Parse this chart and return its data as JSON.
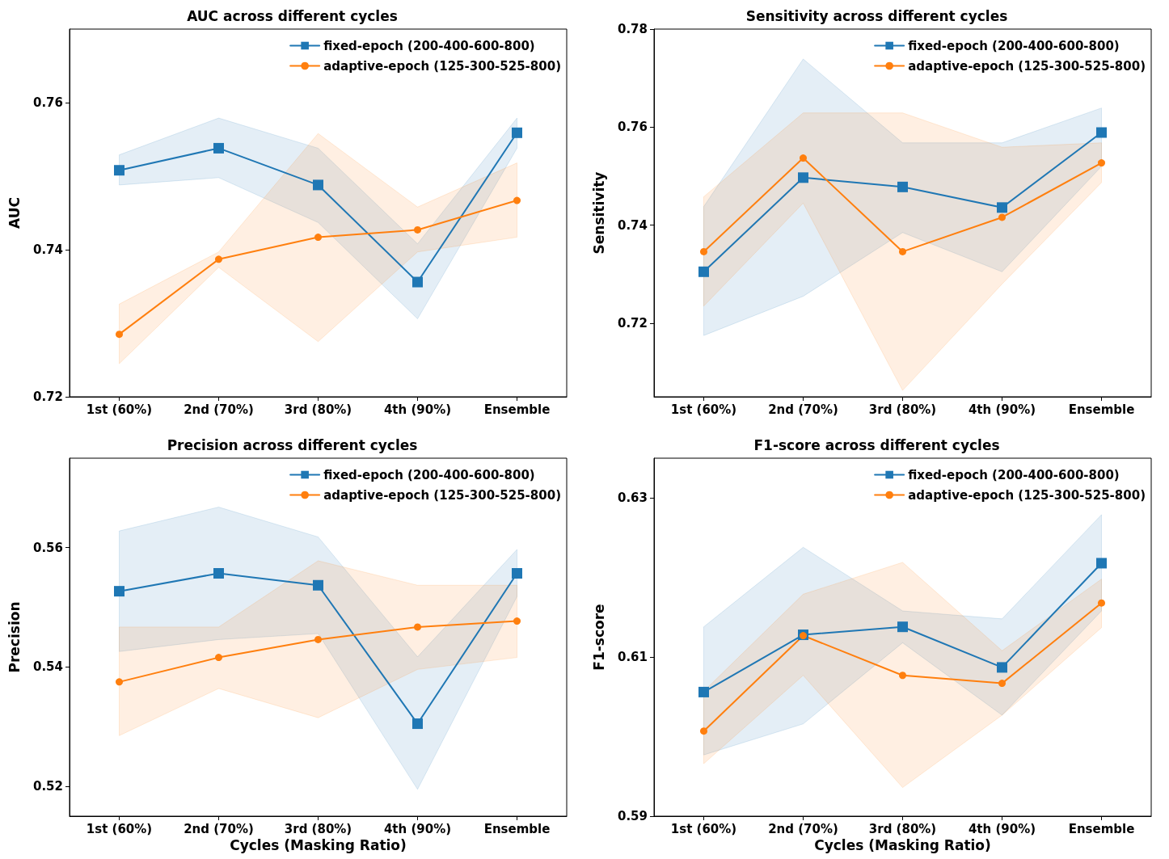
{
  "chart_data": [
    {
      "type": "line",
      "title": "AUC across different cycles",
      "ylabel": "AUC",
      "categories": [
        "1st (60%)",
        "2nd (70%)",
        "3rd (80%)",
        "4th (90%)",
        "Ensemble"
      ],
      "ylim": [
        0.72,
        0.77
      ],
      "yticks": [
        0.72,
        0.74,
        0.76
      ],
      "grid": false,
      "legend": "top right",
      "series": [
        {
          "name": "fixed-epoch (200-400-600-800)",
          "color": "#1f77b4",
          "marker": "square",
          "values": [
            0.7508,
            0.7538,
            0.7488,
            0.7356,
            0.7559
          ],
          "lower": [
            0.7488,
            0.7498,
            0.7437,
            0.7306,
            0.7538
          ],
          "upper": [
            0.7529,
            0.7579,
            0.7538,
            0.7408,
            0.7579
          ]
        },
        {
          "name": "adaptive-epoch (125-300-525-800)",
          "color": "#ff7f0e",
          "marker": "circle",
          "values": [
            0.7285,
            0.7387,
            0.7417,
            0.7427,
            0.7467
          ],
          "lower": [
            0.7245,
            0.7376,
            0.7275,
            0.7397,
            0.7417
          ],
          "upper": [
            0.7326,
            0.7397,
            0.7558,
            0.7458,
            0.7518
          ]
        }
      ]
    },
    {
      "type": "line",
      "title": "Sensitivity across different cycles",
      "ylabel": "Sensitivity",
      "categories": [
        "1st (60%)",
        "2nd (70%)",
        "3rd (80%)",
        "4th (90%)",
        "Ensemble"
      ],
      "ylim": [
        0.705,
        0.78
      ],
      "yticks": [
        0.72,
        0.74,
        0.76,
        0.78
      ],
      "grid": false,
      "legend": "top right",
      "series": [
        {
          "name": "fixed-epoch (200-400-600-800)",
          "color": "#1f77b4",
          "marker": "square",
          "values": [
            0.7305,
            0.7497,
            0.7478,
            0.7436,
            0.7589
          ],
          "lower": [
            0.7175,
            0.7255,
            0.7385,
            0.7305,
            0.752
          ],
          "upper": [
            0.7438,
            0.7739,
            0.7568,
            0.7568,
            0.7639
          ]
        },
        {
          "name": "adaptive-epoch (125-300-525-800)",
          "color": "#ff7f0e",
          "marker": "circle",
          "values": [
            0.7346,
            0.7537,
            0.7346,
            0.7416,
            0.7527
          ],
          "lower": [
            0.7235,
            0.7445,
            0.7063,
            0.728,
            0.7487
          ],
          "upper": [
            0.7458,
            0.7629,
            0.7629,
            0.7559,
            0.7568
          ]
        }
      ]
    },
    {
      "type": "line",
      "title": "Precision across different cycles",
      "xlabel": "Cycles (Masking Ratio)",
      "ylabel": "Precision",
      "categories": [
        "1st (60%)",
        "2nd (70%)",
        "3rd (80%)",
        "4th (90%)",
        "Ensemble"
      ],
      "ylim": [
        0.515,
        0.575
      ],
      "yticks": [
        0.52,
        0.54,
        0.56
      ],
      "grid": false,
      "legend": "top right",
      "series": [
        {
          "name": "fixed-epoch (200-400-600-800)",
          "color": "#1f77b4",
          "marker": "square",
          "values": [
            0.5527,
            0.5557,
            0.5537,
            0.5305,
            0.5557
          ],
          "lower": [
            0.5426,
            0.5446,
            0.5456,
            0.5195,
            0.5518
          ],
          "upper": [
            0.5628,
            0.5668,
            0.5618,
            0.5417,
            0.5597
          ]
        },
        {
          "name": "adaptive-epoch (125-300-525-800)",
          "color": "#ff7f0e",
          "marker": "circle",
          "values": [
            0.5375,
            0.5416,
            0.5446,
            0.5467,
            0.5477
          ],
          "lower": [
            0.5285,
            0.5364,
            0.5315,
            0.5396,
            0.5416
          ],
          "upper": [
            0.5467,
            0.5467,
            0.5578,
            0.5537,
            0.5537
          ]
        }
      ]
    },
    {
      "type": "line",
      "title": "F1-score across different cycles",
      "xlabel": "Cycles (Masking Ratio)",
      "ylabel": "F1-score",
      "categories": [
        "1st (60%)",
        "2nd (70%)",
        "3rd (80%)",
        "4th (90%)",
        "Ensemble"
      ],
      "ylim": [
        0.59,
        0.635
      ],
      "yticks": [
        0.59,
        0.61,
        0.63
      ],
      "grid": false,
      "legend": "top right",
      "series": [
        {
          "name": "fixed-epoch (200-400-600-800)",
          "color": "#1f77b4",
          "marker": "square",
          "values": [
            0.6056,
            0.6128,
            0.6138,
            0.6087,
            0.6218
          ],
          "lower": [
            0.5977,
            0.6016,
            0.6118,
            0.6027,
            0.6158
          ],
          "upper": [
            0.6138,
            0.6238,
            0.6158,
            0.6148,
            0.6279
          ]
        },
        {
          "name": "adaptive-epoch (125-300-525-800)",
          "color": "#ff7f0e",
          "marker": "circle",
          "values": [
            0.6007,
            0.6127,
            0.6077,
            0.6067,
            0.6168
          ],
          "lower": [
            0.5966,
            0.6077,
            0.5936,
            0.6027,
            0.6137
          ],
          "upper": [
            0.6057,
            0.6179,
            0.6219,
            0.6108,
            0.6198
          ]
        }
      ]
    }
  ]
}
